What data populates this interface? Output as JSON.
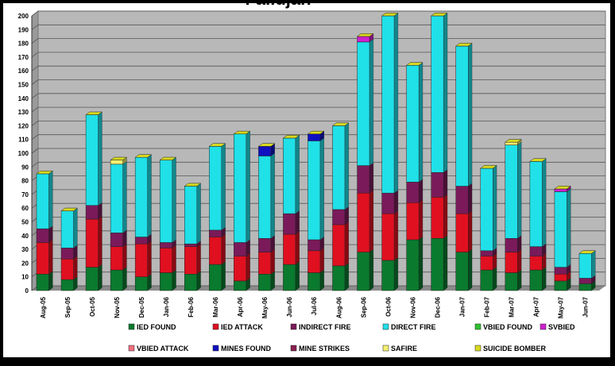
{
  "chart_data": {
    "type": "bar",
    "stacked": true,
    "title": "Fallujah",
    "ylim": [
      0,
      200
    ],
    "yticks": [
      0,
      10,
      20,
      30,
      40,
      50,
      60,
      70,
      80,
      90,
      100,
      110,
      120,
      130,
      140,
      150,
      160,
      170,
      180,
      190,
      200
    ],
    "grid": true,
    "legend_position": "bottom",
    "categories": [
      "Aug-05",
      "Sep-05",
      "Oct-05",
      "Nov-05",
      "Dec-05",
      "Jan-06",
      "Feb-06",
      "Mar-06",
      "Apr-06",
      "May-06",
      "Jun-06",
      "Jul-06",
      "Aug-06",
      "Sep-06",
      "Oct-06",
      "Nov-06",
      "Dec-06",
      "Jan-07",
      "Feb-07",
      "Mar-07",
      "Apr-07",
      "May-07",
      "Jun-07"
    ],
    "series": [
      {
        "name": "IED FOUND",
        "color": "#0a7a2e",
        "values": [
          12,
          8,
          17,
          15,
          10,
          13,
          12,
          19,
          7,
          12,
          19,
          13,
          18,
          28,
          22,
          37,
          38,
          28,
          15,
          13,
          15,
          7,
          5
        ]
      },
      {
        "name": "IED ATTACK",
        "color": "#e01020",
        "values": [
          23,
          15,
          35,
          17,
          24,
          18,
          20,
          20,
          18,
          16,
          22,
          16,
          30,
          43,
          34,
          27,
          30,
          28,
          10,
          15,
          10,
          5,
          0
        ]
      },
      {
        "name": "INDIRECT FIRE",
        "color": "#7a1a5a",
        "values": [
          10,
          8,
          10,
          10,
          5,
          4,
          2,
          5,
          10,
          10,
          15,
          8,
          11,
          20,
          15,
          15,
          18,
          20,
          4,
          10,
          7,
          5,
          4
        ]
      },
      {
        "name": "DIRECT FIRE",
        "color": "#20e0e8",
        "values": [
          40,
          27,
          66,
          50,
          58,
          60,
          42,
          61,
          79,
          60,
          55,
          72,
          61,
          90,
          129,
          85,
          114,
          102,
          60,
          68,
          62,
          55,
          18
        ]
      },
      {
        "name": "VBIED FOUND",
        "color": "#30c030",
        "values": [
          0,
          0,
          0,
          0,
          0,
          0,
          0,
          0,
          0,
          0,
          0,
          0,
          0,
          0,
          0,
          0,
          0,
          0,
          0,
          0,
          0,
          0,
          0
        ]
      },
      {
        "name": "SVBIED",
        "color": "#d020d0",
        "values": [
          0,
          0,
          0,
          0,
          0,
          0,
          0,
          0,
          0,
          0,
          0,
          0,
          0,
          4,
          0,
          0,
          0,
          0,
          0,
          0,
          0,
          2,
          0
        ]
      },
      {
        "name": "VBIED ATTACK",
        "color": "#f07080",
        "values": [
          0,
          0,
          0,
          0,
          0,
          0,
          0,
          0,
          0,
          0,
          0,
          0,
          0,
          0,
          0,
          0,
          0,
          0,
          0,
          0,
          0,
          0,
          0
        ]
      },
      {
        "name": "MINES FOUND",
        "color": "#1010c0",
        "values": [
          0,
          0,
          0,
          0,
          0,
          0,
          0,
          0,
          0,
          7,
          0,
          5,
          0,
          0,
          0,
          0,
          0,
          0,
          0,
          0,
          0,
          0,
          0
        ]
      },
      {
        "name": "MINE STRIKES",
        "color": "#8a2050",
        "values": [
          0,
          0,
          0,
          0,
          0,
          0,
          0,
          0,
          0,
          0,
          0,
          0,
          0,
          0,
          0,
          0,
          0,
          0,
          0,
          0,
          0,
          0,
          0
        ]
      },
      {
        "name": "SAFIRE",
        "color": "#f4f070",
        "values": [
          0,
          0,
          0,
          3,
          0,
          0,
          0,
          0,
          0,
          0,
          0,
          0,
          0,
          0,
          0,
          0,
          0,
          0,
          0,
          2,
          0,
          0,
          0
        ]
      },
      {
        "name": "SUICIDE BOMBER",
        "color": "#d8d820",
        "values": [
          0,
          0,
          0,
          0,
          0,
          0,
          0,
          0,
          0,
          0,
          0,
          0,
          0,
          0,
          0,
          0,
          0,
          0,
          0,
          0,
          0,
          0,
          0
        ]
      }
    ]
  }
}
